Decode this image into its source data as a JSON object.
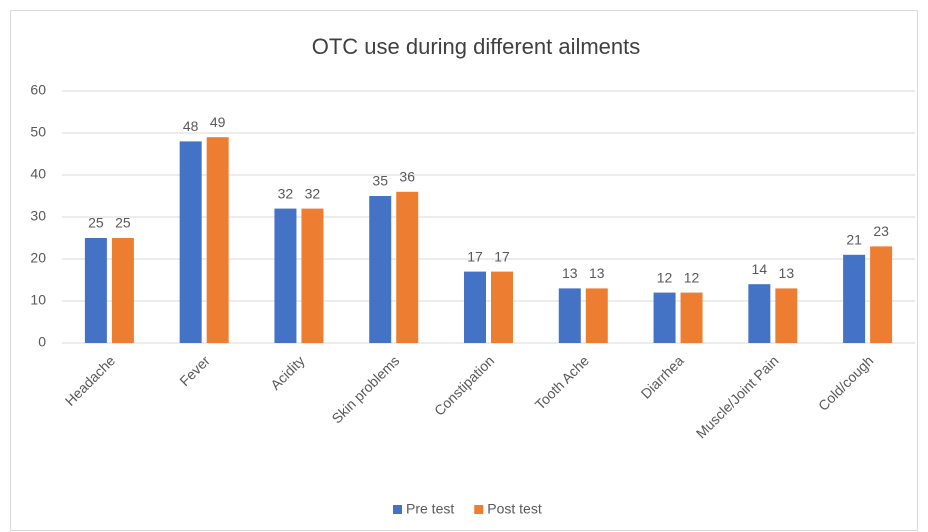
{
  "chart_data": {
    "type": "bar",
    "title": "OTC use during different ailments",
    "categories": [
      "Headache",
      "Fever",
      "Acidity",
      "Skin problems",
      "Constipation",
      "Tooth Ache",
      "Diarrhea",
      "Muscle/Joint Pain",
      "Cold/cough"
    ],
    "series": [
      {
        "name": "Pre test",
        "color": "#4472c4",
        "values": [
          25,
          48,
          32,
          35,
          17,
          13,
          12,
          14,
          21
        ]
      },
      {
        "name": "Post test",
        "color": "#ed7d31",
        "values": [
          25,
          49,
          32,
          36,
          17,
          13,
          12,
          13,
          23
        ]
      }
    ],
    "ylim": [
      0,
      60
    ],
    "yticks": [
      0,
      10,
      20,
      30,
      40,
      50,
      60
    ],
    "grid": true,
    "legend": "bottom"
  }
}
